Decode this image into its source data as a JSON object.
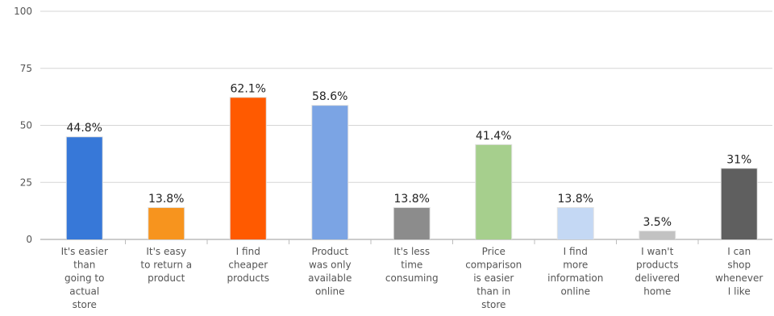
{
  "chart_data": {
    "type": "bar",
    "categories": [
      [
        "It's easier",
        "than",
        "going to",
        "actual",
        "store"
      ],
      [
        "It's easy",
        "to return a",
        "product"
      ],
      [
        "I find",
        "cheaper",
        "products"
      ],
      [
        "Product",
        "was only",
        "available",
        "online"
      ],
      [
        "It's less",
        "time",
        "consuming"
      ],
      [
        "Price",
        "comparison",
        "is easier",
        "than in",
        "store"
      ],
      [
        "I find",
        "more",
        "information",
        "online"
      ],
      [
        "I wan't",
        "products",
        "delivered",
        "home"
      ],
      [
        "I can",
        "shop",
        "whenever",
        "I like"
      ]
    ],
    "values": [
      44.8,
      13.8,
      62.1,
      58.6,
      13.8,
      41.4,
      13.8,
      3.5,
      31
    ],
    "value_labels": [
      "44.8%",
      "13.8%",
      "62.1%",
      "58.6%",
      "13.8%",
      "41.4%",
      "13.8%",
      "3.5%",
      "31%"
    ],
    "colors": [
      "#3778d8",
      "#f7941e",
      "#ff5a00",
      "#7ba4e4",
      "#8c8c8c",
      "#a6cf8d",
      "#c4d8f4",
      "#c2c2c2",
      "#5f5f5f"
    ],
    "y_ticks": [
      0,
      25,
      50,
      75,
      100
    ],
    "ylim": [
      0,
      100
    ],
    "grid": true,
    "title": "",
    "xlabel": "",
    "ylabel": ""
  }
}
